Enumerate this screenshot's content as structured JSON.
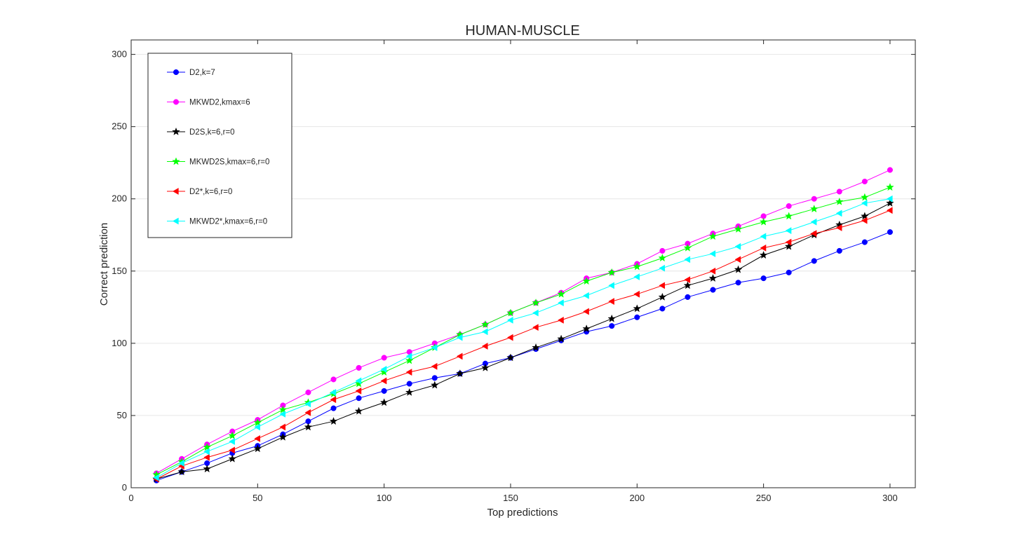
{
  "chart_data": {
    "type": "line",
    "title": "HUMAN-MUSCLE",
    "xlabel": "Top predictions",
    "ylabel": "Correct prediction",
    "xlim": [
      0,
      310
    ],
    "ylim": [
      0,
      310
    ],
    "xticks": [
      0,
      50,
      100,
      150,
      200,
      250,
      300
    ],
    "yticks": [
      0,
      50,
      100,
      150,
      200,
      250,
      300
    ],
    "grid": "horizontal",
    "legend_position": "top-left",
    "x": [
      10,
      20,
      30,
      40,
      50,
      60,
      70,
      80,
      90,
      100,
      110,
      120,
      130,
      140,
      150,
      160,
      170,
      180,
      190,
      200,
      210,
      220,
      230,
      240,
      250,
      260,
      270,
      280,
      290,
      300
    ],
    "series": [
      {
        "name": "D2,k=7",
        "color": "#0000ff",
        "marker": "circle",
        "values": [
          5,
          11,
          17,
          24,
          29,
          37,
          46,
          55,
          62,
          67,
          72,
          76,
          79,
          86,
          90,
          96,
          102,
          108,
          112,
          118,
          124,
          132,
          137,
          142,
          145,
          149,
          157,
          164,
          170,
          177
        ]
      },
      {
        "name": "MKWD2,kmax=6",
        "color": "#ff00ff",
        "marker": "circle",
        "values": [
          10,
          20,
          30,
          39,
          47,
          57,
          66,
          75,
          83,
          90,
          94,
          100,
          106,
          113,
          121,
          128,
          135,
          145,
          149,
          155,
          164,
          169,
          176,
          181,
          188,
          195,
          200,
          205,
          212,
          220
        ]
      },
      {
        "name": "D2S,k=6,r=0",
        "color": "#000000",
        "marker": "star",
        "values": [
          6,
          11,
          13,
          20,
          27,
          35,
          42,
          46,
          53,
          59,
          66,
          71,
          79,
          83,
          90,
          97,
          103,
          110,
          117,
          124,
          132,
          140,
          145,
          151,
          161,
          167,
          175,
          182,
          188,
          197
        ]
      },
      {
        "name": "MKWD2S,kmax=6,r=0",
        "color": "#00ff00",
        "marker": "star",
        "values": [
          9,
          18,
          28,
          36,
          45,
          54,
          59,
          65,
          72,
          80,
          88,
          97,
          106,
          113,
          121,
          128,
          134,
          143,
          149,
          153,
          159,
          166,
          174,
          179,
          184,
          188,
          193,
          198,
          201,
          208
        ]
      },
      {
        "name": "D2*,k=6,r=0",
        "color": "#ff0000",
        "marker": "triangle-left",
        "values": [
          6,
          15,
          21,
          26,
          34,
          42,
          52,
          61,
          67,
          74,
          80,
          84,
          91,
          98,
          104,
          111,
          116,
          122,
          129,
          134,
          140,
          144,
          150,
          158,
          166,
          170,
          176,
          180,
          185,
          192
        ]
      },
      {
        "name": "MKWD2*,kmax=6,r=0",
        "color": "#00ffff",
        "marker": "triangle-left",
        "values": [
          7,
          17,
          25,
          32,
          42,
          51,
          58,
          66,
          74,
          82,
          91,
          97,
          104,
          108,
          116,
          121,
          128,
          133,
          140,
          146,
          152,
          158,
          162,
          167,
          174,
          178,
          184,
          190,
          197,
          200
        ]
      }
    ]
  }
}
